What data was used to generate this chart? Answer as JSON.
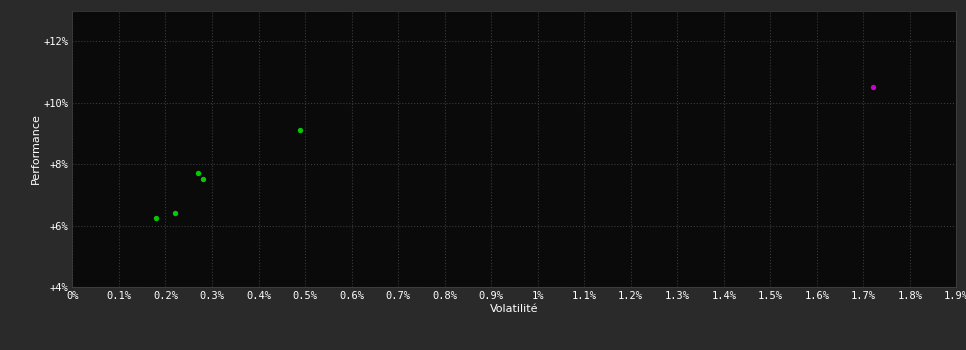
{
  "background_color": "#2a2a2a",
  "plot_bg_color": "#0a0a0a",
  "grid_color": "#3a3a3a",
  "text_color": "#ffffff",
  "xlabel": "Volatilité",
  "ylabel": "Performance",
  "xtick_labels": [
    "0%",
    "0.1%",
    "0.2%",
    "0.3%",
    "0.4%",
    "0.5%",
    "0.6%",
    "0.7%",
    "0.8%",
    "0.9%",
    "1%",
    "1.1%",
    "1.2%",
    "1.3%",
    "1.4%",
    "1.5%",
    "1.6%",
    "1.7%",
    "1.8%",
    "1.9%"
  ],
  "xtick_values": [
    0.0,
    0.001,
    0.002,
    0.003,
    0.004,
    0.005,
    0.006,
    0.007,
    0.008,
    0.009,
    0.01,
    0.011,
    0.012,
    0.013,
    0.014,
    0.015,
    0.016,
    0.017,
    0.018,
    0.019
  ],
  "ytick_labels": [
    "+4%",
    "+6%",
    "+8%",
    "+10%",
    "+12%"
  ],
  "ytick_values": [
    0.04,
    0.06,
    0.08,
    0.1,
    0.12
  ],
  "xlim": [
    0.0,
    0.019
  ],
  "ylim": [
    0.04,
    0.13
  ],
  "green_points": [
    [
      0.0018,
      0.0625
    ],
    [
      0.0022,
      0.064
    ],
    [
      0.0027,
      0.077
    ],
    [
      0.0028,
      0.075
    ],
    [
      0.0049,
      0.091
    ]
  ],
  "magenta_points": [
    [
      0.0172,
      0.105
    ]
  ],
  "green_color": "#00cc00",
  "magenta_color": "#cc00cc",
  "point_size": 15
}
